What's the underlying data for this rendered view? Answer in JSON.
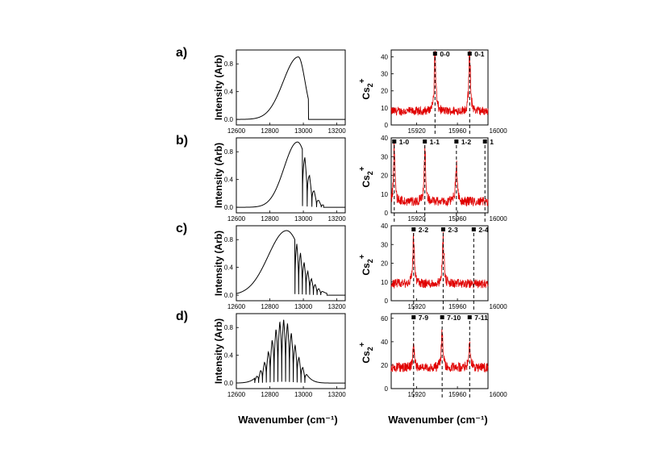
{
  "figure": {
    "xlabel_left": "Wavenumber (cm⁻¹)",
    "xlabel_right": "Wavenumber (cm⁻¹)"
  },
  "colors": {
    "spectrum": "#000000",
    "ion_signal": "#e00000"
  },
  "chart_data": [
    {
      "panel": "a)",
      "type": "line",
      "side": "left",
      "ylabel": "Intensity (Arb)",
      "xlim": [
        12600,
        13250
      ],
      "ylim": [
        -0.08,
        1.0
      ],
      "xticks": [
        12600,
        12800,
        13000,
        13200
      ],
      "xtick_labels": [
        "12600",
        "12800",
        "13000",
        "13200"
      ],
      "yticks": [
        0.0,
        0.4,
        0.8
      ],
      "ytick_labels": [
        "0.0",
        "0.4",
        "0.8"
      ],
      "envelope": {
        "center": 12970,
        "sigma_left": 90,
        "sigma_right": 40,
        "peak": 0.9,
        "cutoff": 13030
      },
      "fringes": {
        "start": 99999,
        "spacing": 30,
        "count": 0
      }
    },
    {
      "panel": "b)",
      "type": "line",
      "side": "left",
      "ylabel": "Intensity (Arb)",
      "xlim": [
        12600,
        13250
      ],
      "ylim": [
        -0.08,
        1.0
      ],
      "xticks": [
        12600,
        12800,
        13000,
        13200
      ],
      "xtick_labels": [
        "12600",
        "12800",
        "13000",
        "13200"
      ],
      "yticks": [
        0.0,
        0.4,
        0.8
      ],
      "ytick_labels": [
        "0.0",
        "0.4",
        "0.8"
      ],
      "envelope": {
        "center": 12965,
        "sigma_left": 80,
        "sigma_right": 60,
        "peak": 0.94,
        "cutoff": 13120
      },
      "fringes": {
        "start": 12995,
        "spacing": 28,
        "count": 5
      }
    },
    {
      "panel": "c)",
      "type": "line",
      "side": "left",
      "ylabel": "Intensity (Arb)",
      "xlim": [
        12600,
        13250
      ],
      "ylim": [
        -0.08,
        1.0
      ],
      "xticks": [
        12600,
        12800,
        13000,
        13200
      ],
      "xtick_labels": [
        "12600",
        "12800",
        "13000",
        "13200"
      ],
      "yticks": [
        0.0,
        0.4,
        0.8
      ],
      "ytick_labels": [
        "0.0",
        "0.4",
        "0.8"
      ],
      "envelope": {
        "center": 12900,
        "sigma_left": 110,
        "sigma_right": 90,
        "peak": 0.93,
        "cutoff": 13140
      },
      "fringes": {
        "start": 12950,
        "spacing": 22,
        "count": 8
      }
    },
    {
      "panel": "d)",
      "type": "line",
      "side": "left",
      "ylabel": "Intensity (Arb)",
      "xlim": [
        12600,
        13250
      ],
      "ylim": [
        -0.08,
        1.0
      ],
      "xticks": [
        12600,
        12800,
        13000,
        13200
      ],
      "xtick_labels": [
        "12600",
        "12800",
        "13000",
        "13200"
      ],
      "yticks": [
        0.0,
        0.4,
        0.8
      ],
      "ytick_labels": [
        "0.0",
        "0.4",
        "0.8"
      ],
      "envelope": {
        "center": 12880,
        "sigma_left": 75,
        "sigma_right": 70,
        "peak": 0.92,
        "cutoff": 13150
      },
      "fringes": {
        "start": 12710,
        "spacing": 23,
        "count": 14
      }
    },
    {
      "panel": "a)",
      "type": "line",
      "side": "right",
      "ylabel": "Cs2+",
      "xlim": [
        15895,
        15990
      ],
      "ylim": [
        0,
        44
      ],
      "xticks": [
        15920,
        15960,
        16000
      ],
      "xtick_labels": [
        "15920",
        "15960",
        "16000"
      ],
      "yticks": [
        0,
        10,
        20,
        30,
        40
      ],
      "ytick_labels": [
        "0",
        "10",
        "20",
        "30",
        "40"
      ],
      "baseline": 8,
      "noise": 2.5,
      "peaks": [
        {
          "label": "0-0",
          "x": 15938,
          "height": 36
        },
        {
          "label": "0-1",
          "x": 15972,
          "height": 36
        }
      ]
    },
    {
      "panel": "b)",
      "type": "line",
      "side": "right",
      "ylabel": "Cs2+",
      "xlim": [
        15895,
        15990
      ],
      "ylim": [
        0,
        40
      ],
      "xticks": [
        15920,
        15960,
        16000
      ],
      "xtick_labels": [
        "15920",
        "15960",
        "16000"
      ],
      "yticks": [
        0,
        10,
        20,
        30,
        40
      ],
      "ytick_labels": [
        "0",
        "10",
        "20",
        "30",
        "40"
      ],
      "baseline": 6,
      "noise": 2.5,
      "peaks": [
        {
          "label": "1-0",
          "x": 15898,
          "height": 29
        },
        {
          "label": "1-1",
          "x": 15928,
          "height": 28
        },
        {
          "label": "1-2",
          "x": 15959,
          "height": 20
        },
        {
          "label": "1",
          "x": 15987,
          "height": 0
        }
      ]
    },
    {
      "panel": "c)",
      "type": "line",
      "side": "right",
      "ylabel": "Cs2+",
      "xlim": [
        15895,
        15990
      ],
      "ylim": [
        0,
        40
      ],
      "xticks": [
        15920,
        15960,
        16000
      ],
      "xtick_labels": [
        "15920",
        "15960",
        "16000"
      ],
      "yticks": [
        0,
        10,
        20,
        30,
        40
      ],
      "ytick_labels": [
        "0",
        "10",
        "20",
        "30",
        "40"
      ],
      "baseline": 9,
      "noise": 2.5,
      "peaks": [
        {
          "label": "2-2",
          "x": 15917,
          "height": 27
        },
        {
          "label": "2-3",
          "x": 15946,
          "height": 25
        },
        {
          "label": "2-4",
          "x": 15976,
          "height": 0
        }
      ]
    },
    {
      "panel": "d)",
      "type": "line",
      "side": "right",
      "ylabel": "Cs2+",
      "xlim": [
        15895,
        15990
      ],
      "ylim": [
        0,
        64
      ],
      "xticks": [
        15920,
        15960,
        16000
      ],
      "xtick_labels": [
        "15920",
        "15960",
        "16000"
      ],
      "yticks": [
        0,
        20,
        40,
        60
      ],
      "ytick_labels": [
        "0",
        "20",
        "40",
        "60"
      ],
      "baseline": 18,
      "noise": 4,
      "peaks": [
        {
          "label": "7-9",
          "x": 15917,
          "height": 20
        },
        {
          "label": "7-10",
          "x": 15945,
          "height": 30
        },
        {
          "label": "7-11",
          "x": 15972,
          "height": 22
        }
      ]
    }
  ]
}
